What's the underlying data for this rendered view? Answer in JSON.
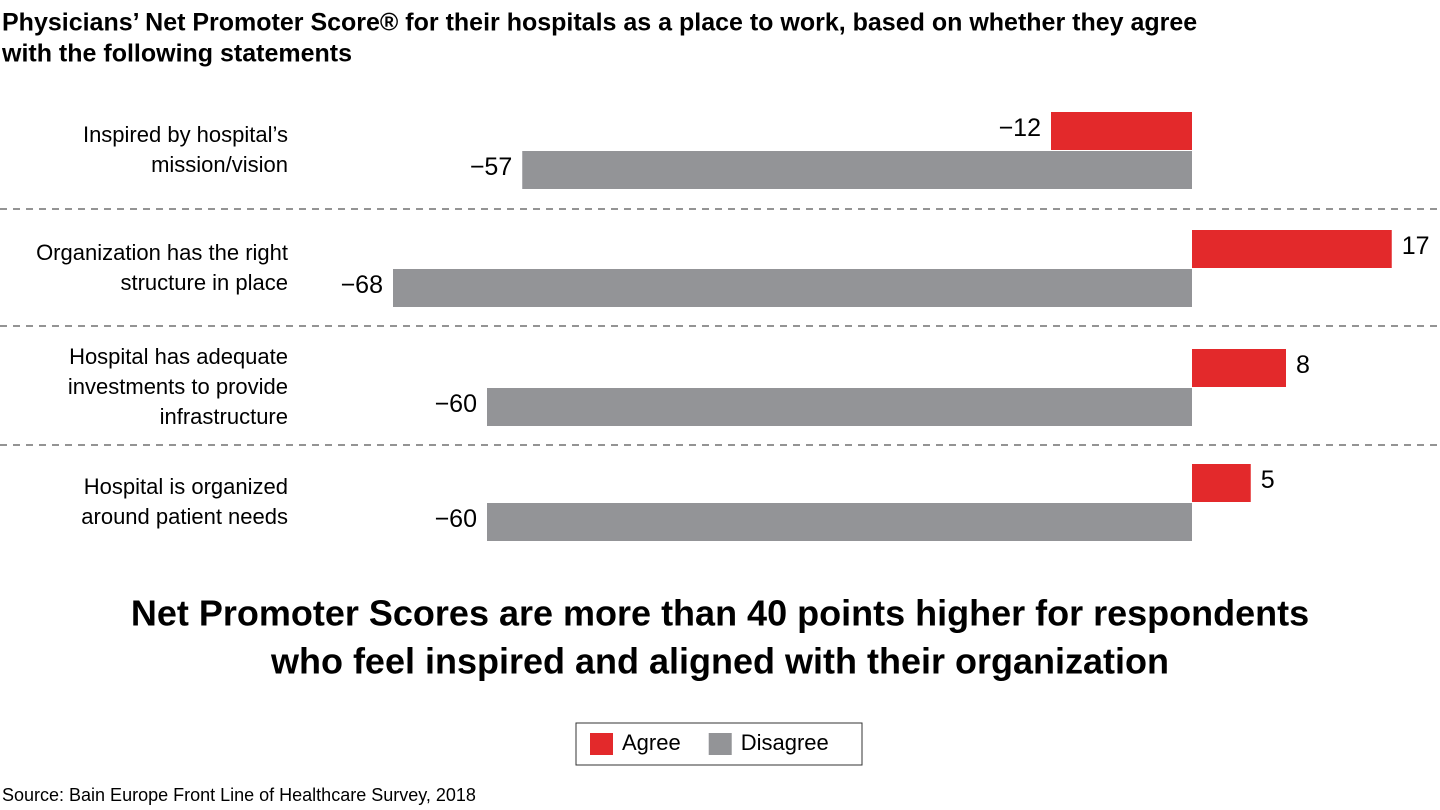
{
  "chart_data": {
    "type": "bar",
    "orientation": "horizontal",
    "title": [
      "Physicians’ Net Promoter Score® for their hospitals as a place to work, based on whether they agree",
      "with the following statements"
    ],
    "categories": [
      [
        "Inspired by hospital’s",
        "mission/vision"
      ],
      [
        "Organization has the right",
        "structure in place"
      ],
      [
        "Hospital has adequate",
        "investments to provide",
        "infrastructure"
      ],
      [
        "Hospital is organized",
        "around patient needs"
      ]
    ],
    "series": [
      {
        "name": "Agree",
        "color": "#e3292b",
        "values": [
          -12,
          17,
          8,
          5
        ],
        "value_labels": [
          "−12",
          "17",
          "8",
          "5"
        ]
      },
      {
        "name": "Disagree",
        "color": "#939497",
        "values": [
          -57,
          -68,
          -60,
          -60
        ],
        "value_labels": [
          "−57",
          "−68",
          "−60",
          "−60"
        ]
      }
    ],
    "annotation": [
      "Net Promoter Scores are more than 40 points higher for respondents",
      "who feel inspired and aligned with their organization"
    ],
    "annotation_color": "#e3292b",
    "source": "Source: Bain Europe Front Line of Healthcare Survey, 2018",
    "legend": "bottom"
  }
}
